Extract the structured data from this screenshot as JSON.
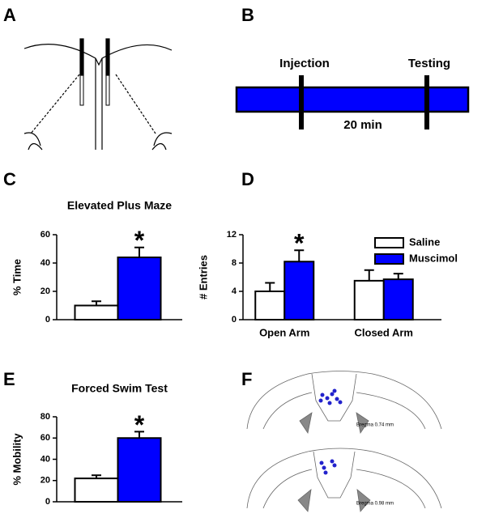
{
  "panel_labels": [
    "A",
    "B",
    "C",
    "D",
    "E",
    "F"
  ],
  "timeline": {
    "events": [
      "Injection",
      "Testing"
    ],
    "duration": "20 min"
  },
  "sections": [
    "Bregma 0.74 mm",
    "Bregma 0.98 mm"
  ],
  "chart_data": [
    {
      "type": "bar",
      "title": "Elevated Plus Maze",
      "y_label": "% Time",
      "categories": [
        null,
        null
      ],
      "values": [
        10,
        44
      ],
      "errors": [
        3,
        7
      ],
      "colors": [
        "#ffffff",
        "#0000ff"
      ],
      "value_annotations": [
        null,
        "*"
      ],
      "ylim": [
        0,
        60
      ],
      "yticks": [
        0,
        20,
        40,
        60
      ]
    },
    {
      "type": "grouped_bar",
      "y_label": "# Entries",
      "categories": [
        "Open Arm",
        "Closed Arm"
      ],
      "series": [
        {
          "name": "Saline",
          "color": "#ffffff",
          "values": [
            4,
            5.5
          ],
          "errors": [
            1.2,
            1.5
          ],
          "value_annotations": [
            null,
            null
          ]
        },
        {
          "name": "Muscimol",
          "color": "#0000ff",
          "values": [
            8.2,
            5.7
          ],
          "errors": [
            1.6,
            0.8
          ],
          "value_annotations": [
            "*",
            null
          ]
        }
      ],
      "legend": "upper right",
      "ylim": [
        0,
        12
      ],
      "yticks": [
        0,
        4,
        8,
        12
      ]
    },
    {
      "type": "bar",
      "title": "Forced Swim Test",
      "y_label": "% Mobility",
      "categories": [
        null,
        null
      ],
      "values": [
        22,
        60
      ],
      "errors": [
        3,
        6
      ],
      "colors": [
        "#ffffff",
        "#0000ff"
      ],
      "value_annotations": [
        null,
        "*"
      ],
      "ylim": [
        0,
        80
      ],
      "yticks": [
        0,
        20,
        40,
        60,
        80
      ]
    }
  ]
}
